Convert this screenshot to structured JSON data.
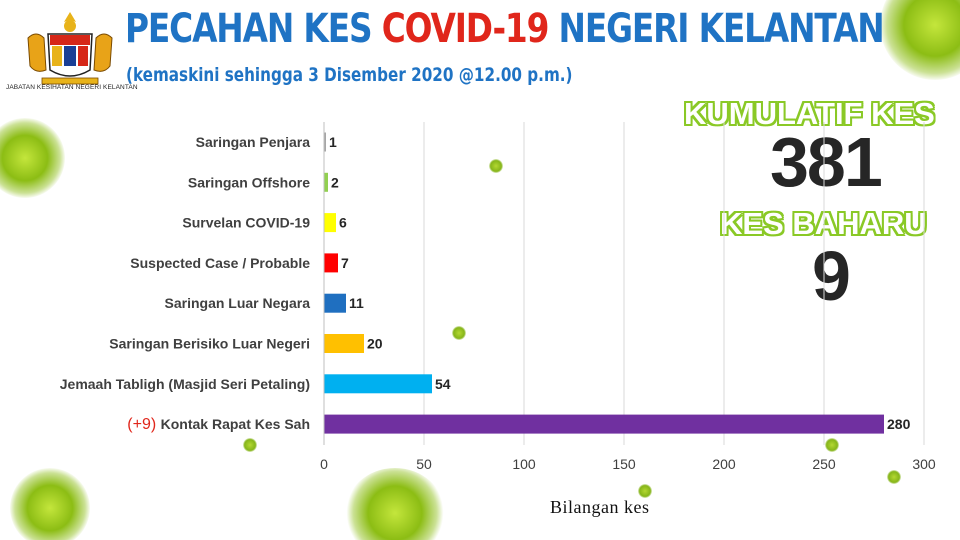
{
  "header": {
    "title_part1": "PECAHAN KES ",
    "title_part2": "COVID-19",
    "title_part3": " NEGERI KELANTAN",
    "subtitle": "(kemaskini sehingga 3 Disember 2020 @12.00 p.m.)",
    "logo_caption": "JABATAN KESIHATAN NEGERI KELANTAN"
  },
  "summary": {
    "cumulative_label": "KUMULATIF KES",
    "cumulative_value": "381",
    "new_label": "KES BAHARU",
    "new_value": "9"
  },
  "colors": {
    "title_blue": "#1f73c4",
    "title_red": "#e0261b",
    "stat_outline_green": "#8ac926"
  },
  "chart_data": {
    "type": "bar",
    "orientation": "horizontal",
    "categories": [
      "Saringan Penjara",
      "Saringan Offshore",
      "Survelan COVID-19",
      "Suspected Case / Probable",
      "Saringan Luar Negara",
      "Saringan Berisiko Luar Negeri",
      "Jemaah Tabligh (Masjid Seri Petaling)",
      "Kontak Rapat Kes Sah"
    ],
    "values": [
      1,
      2,
      6,
      7,
      11,
      20,
      54,
      280
    ],
    "bar_colors": [
      "#a6a6a6",
      "#92d050",
      "#ffff00",
      "#ff0000",
      "#1f6fc0",
      "#ffc000",
      "#00b0f0",
      "#7030a0"
    ],
    "category_prefix": {
      "Kontak Rapat Kes Sah": "(+9)"
    },
    "xlabel": "Bilangan kes",
    "ylabel": "",
    "xlim": [
      0,
      300
    ],
    "xticks": [
      0,
      50,
      100,
      150,
      200,
      250,
      300
    ],
    "grid": true
  }
}
